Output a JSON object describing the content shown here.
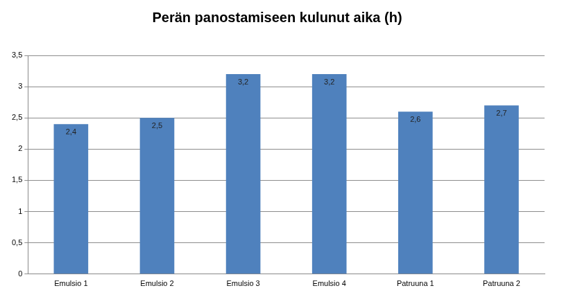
{
  "chart_data": {
    "type": "bar",
    "title": "Perän panostamiseen kulunut aika (h)",
    "categories": [
      "Emulsio 1",
      "Emulsio 2",
      "Emulsio 3",
      "Emulsio 4",
      "Patruuna 1",
      "Patruuna 2"
    ],
    "values": [
      2.4,
      2.5,
      3.2,
      3.2,
      2.6,
      2.7
    ],
    "value_labels": [
      "2,4",
      "2,5",
      "3,2",
      "3,2",
      "2,6",
      "2,7"
    ],
    "color": "#4f81bd",
    "ylim": [
      0,
      3.5
    ],
    "yticks": [
      0,
      {
        "value": 0.5,
        "label": "0,5"
      },
      1,
      {
        "value": 1.5,
        "label": "1,5"
      },
      2,
      {
        "value": 2.5,
        "label": "2,5"
      },
      3,
      {
        "value": 3.5,
        "label": "3,5"
      }
    ],
    "grid": true,
    "data_labels": true
  }
}
